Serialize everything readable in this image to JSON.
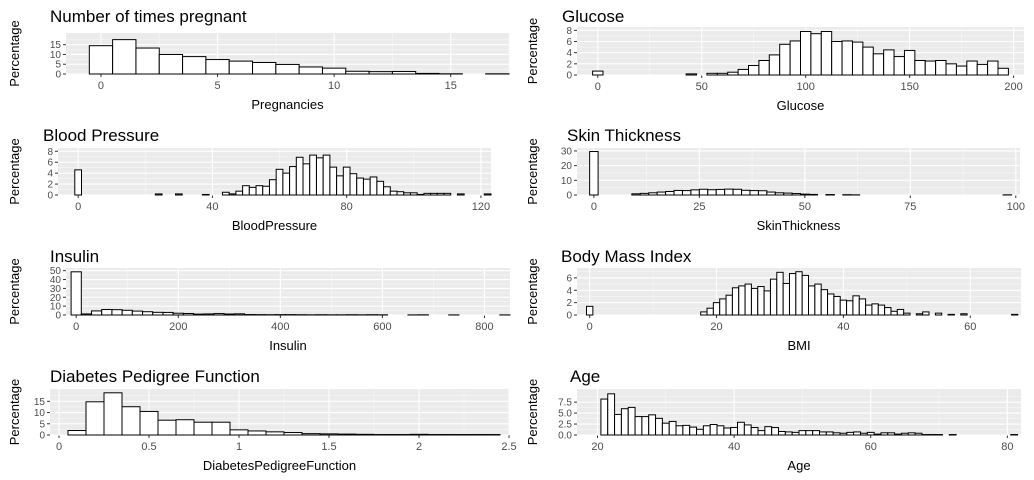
{
  "chart_data": [
    {
      "type": "bar",
      "title": "Number of times pregnant",
      "xlabel": "Pregnancies",
      "ylabel": "Percentage",
      "xlim": [
        -1.5,
        17.5
      ],
      "ylim": [
        0,
        21
      ],
      "xticks": [
        0,
        5,
        10,
        15
      ],
      "yticks": [
        0,
        5,
        10,
        15
      ],
      "bin_width": 1,
      "x": [
        0,
        1,
        2,
        3,
        4,
        5,
        6,
        7,
        8,
        9,
        10,
        11,
        12,
        13,
        14,
        15,
        17
      ],
      "values": [
        14.5,
        17.6,
        13.3,
        10.0,
        8.9,
        7.4,
        6.6,
        5.9,
        4.9,
        3.6,
        3.0,
        1.4,
        1.2,
        1.3,
        0.3,
        0.1,
        0.1
      ]
    },
    {
      "type": "bar",
      "title": "Glucose",
      "xlabel": "Glucose",
      "ylabel": "Percentage",
      "xlim": [
        -10,
        205
      ],
      "ylim": [
        0,
        8.6
      ],
      "xticks": [
        0,
        50,
        100,
        150,
        200
      ],
      "yticks": [
        0,
        2,
        4,
        6,
        8
      ],
      "bin_width": 5,
      "x": [
        0,
        45,
        55,
        60,
        65,
        70,
        75,
        80,
        85,
        90,
        95,
        100,
        105,
        110,
        115,
        120,
        125,
        130,
        135,
        140,
        145,
        150,
        155,
        160,
        165,
        170,
        175,
        180,
        185,
        190,
        195
      ],
      "values": [
        0.7,
        0.2,
        0.3,
        0.3,
        0.5,
        1.0,
        1.7,
        2.6,
        3.6,
        5.5,
        6.1,
        7.8,
        7.4,
        7.8,
        6.0,
        6.1,
        5.9,
        5.0,
        3.8,
        4.5,
        3.3,
        4.4,
        2.6,
        2.5,
        2.6,
        2.0,
        1.6,
        2.5,
        1.9,
        2.5,
        1.2
      ]
    },
    {
      "type": "bar",
      "title": "Blood Pressure",
      "xlabel": "BloodPressure",
      "ylabel": "Percentage",
      "xlim": [
        -6,
        123
      ],
      "ylim": [
        0,
        8.6
      ],
      "xticks": [
        0,
        40,
        80,
        120
      ],
      "yticks": [
        0,
        2,
        4,
        6,
        8
      ],
      "bin_width": 2,
      "x": [
        0,
        24,
        30,
        38,
        44,
        46,
        48,
        50,
        52,
        54,
        56,
        58,
        60,
        62,
        64,
        66,
        68,
        70,
        72,
        74,
        76,
        78,
        80,
        82,
        84,
        86,
        88,
        90,
        92,
        94,
        96,
        98,
        100,
        102,
        104,
        106,
        108,
        110,
        114,
        122
      ],
      "values": [
        4.6,
        0.2,
        0.2,
        0.1,
        0.5,
        0.2,
        0.7,
        1.7,
        1.4,
        1.7,
        1.6,
        2.8,
        4.7,
        4.0,
        5.2,
        6.9,
        5.7,
        7.3,
        6.8,
        7.3,
        5.1,
        3.5,
        5.1,
        3.9,
        3.1,
        2.9,
        3.3,
        2.5,
        1.5,
        0.7,
        0.6,
        0.4,
        0.4,
        0.1,
        0.3,
        0.3,
        0.3,
        0.3,
        0.2,
        0.2
      ]
    },
    {
      "type": "bar",
      "title": "Skin Thickness",
      "xlabel": "SkinThickness",
      "ylabel": "Percentage",
      "xlim": [
        -4,
        101
      ],
      "ylim": [
        0,
        32
      ],
      "xticks": [
        0,
        25,
        50,
        75,
        100
      ],
      "yticks": [
        0,
        10,
        20,
        30
      ],
      "bin_width": 2,
      "x": [
        0,
        10,
        12,
        14,
        16,
        18,
        20,
        22,
        24,
        26,
        28,
        30,
        32,
        34,
        36,
        38,
        40,
        42,
        44,
        46,
        48,
        50,
        52,
        56,
        60,
        62,
        98
      ],
      "values": [
        29.6,
        0.8,
        1.1,
        1.5,
        2.0,
        2.4,
        3.1,
        3.0,
        3.5,
        3.9,
        3.6,
        3.8,
        4.0,
        3.9,
        3.2,
        3.0,
        2.9,
        2.0,
        1.5,
        1.3,
        1.0,
        0.6,
        0.4,
        0.3,
        0.2,
        0.1,
        0.1
      ]
    },
    {
      "type": "bar",
      "title": "Insulin",
      "xlabel": "Insulin",
      "ylabel": "Percentage",
      "xlim": [
        -20,
        850
      ],
      "ylim": [
        0,
        53
      ],
      "xticks": [
        0,
        200,
        400,
        600,
        800
      ],
      "yticks": [
        0,
        10,
        20,
        30,
        40,
        50
      ],
      "bin_width": 20,
      "x": [
        0,
        20,
        40,
        60,
        80,
        100,
        120,
        140,
        160,
        180,
        200,
        220,
        240,
        260,
        280,
        300,
        320,
        340,
        360,
        380,
        400,
        420,
        440,
        460,
        480,
        500,
        520,
        540,
        560,
        580,
        600,
        660,
        680,
        740,
        840
      ],
      "values": [
        48.7,
        1.2,
        4.6,
        6.2,
        6.0,
        5.3,
        4.4,
        3.7,
        3.0,
        2.9,
        2.0,
        1.7,
        1.0,
        1.2,
        1.6,
        1.1,
        1.3,
        0.5,
        0.4,
        0.3,
        0.4,
        0.4,
        0.3,
        0.2,
        0.3,
        0.2,
        0.2,
        0.3,
        0.2,
        0.3,
        0.2,
        0.1,
        0.2,
        0.1,
        0.1
      ]
    },
    {
      "type": "bar",
      "title": "Body Mass Index",
      "xlabel": "BMI",
      "ylabel": "Percentage",
      "xlim": [
        -2,
        68
      ],
      "ylim": [
        0,
        7.6
      ],
      "xticks": [
        0,
        20,
        40,
        60
      ],
      "yticks": [
        0,
        2,
        4,
        6
      ],
      "bin_width": 1,
      "x": [
        0,
        18,
        19,
        20,
        21,
        22,
        23,
        24,
        25,
        26,
        27,
        28,
        29,
        30,
        31,
        32,
        33,
        34,
        35,
        36,
        37,
        38,
        39,
        40,
        41,
        42,
        43,
        44,
        45,
        46,
        47,
        48,
        49,
        50,
        52,
        53,
        55,
        57,
        59,
        67
      ],
      "values": [
        1.4,
        0.5,
        1.1,
        2.0,
        2.6,
        3.2,
        4.4,
        4.7,
        5.0,
        4.3,
        4.6,
        3.9,
        5.8,
        6.9,
        5.1,
        6.7,
        7.0,
        6.4,
        4.7,
        5.0,
        4.1,
        3.4,
        3.0,
        2.4,
        2.3,
        3.1,
        2.6,
        1.6,
        1.8,
        1.6,
        1.2,
        0.6,
        0.9,
        0.3,
        0.2,
        0.5,
        0.3,
        0.1,
        0.2,
        0.1
      ]
    },
    {
      "type": "bar",
      "title": "Diabetes Pedigree Function",
      "xlabel": "DiabetesPedigreeFunction",
      "ylabel": "Percentage",
      "xlim": [
        -0.05,
        2.5
      ],
      "ylim": [
        0,
        20.5
      ],
      "xticks": [
        0.0,
        0.5,
        1.0,
        1.5,
        2.0,
        2.5
      ],
      "yticks": [
        0,
        5,
        10,
        15
      ],
      "bin_width": 0.1,
      "x": [
        0.1,
        0.2,
        0.3,
        0.4,
        0.5,
        0.6,
        0.7,
        0.8,
        0.9,
        1.0,
        1.1,
        1.2,
        1.3,
        1.4,
        1.5,
        1.6,
        1.7,
        1.8,
        1.9,
        2.0,
        2.1,
        2.2,
        2.3,
        2.4
      ],
      "values": [
        2.0,
        14.8,
        18.8,
        12.6,
        10.5,
        6.6,
        6.8,
        5.7,
        5.7,
        2.3,
        1.8,
        1.4,
        1.1,
        0.6,
        0.5,
        0.4,
        0.3,
        0.2,
        0.2,
        0.3,
        0.2,
        0.2,
        0.2,
        0.2
      ]
    },
    {
      "type": "bar",
      "title": "Age",
      "xlabel": "Age",
      "ylabel": "Percentage",
      "xlim": [
        17,
        82
      ],
      "ylim": [
        0,
        10.5
      ],
      "xticks": [
        20,
        40,
        60,
        80
      ],
      "yticks": [
        0.0,
        2.5,
        5.0,
        7.5
      ],
      "ytick_labels": [
        "0.0",
        "2.5",
        "5.0",
        "7.5"
      ],
      "bin_width": 1,
      "x": [
        21,
        22,
        23,
        24,
        25,
        26,
        27,
        28,
        29,
        30,
        31,
        32,
        33,
        34,
        35,
        36,
        37,
        38,
        39,
        40,
        41,
        42,
        43,
        44,
        45,
        46,
        47,
        48,
        49,
        50,
        51,
        52,
        53,
        54,
        55,
        56,
        57,
        58,
        59,
        60,
        61,
        62,
        63,
        64,
        65,
        66,
        67,
        68,
        69,
        70,
        72,
        81
      ],
      "values": [
        8.2,
        9.4,
        4.7,
        6.0,
        6.3,
        4.2,
        4.2,
        4.6,
        3.8,
        2.7,
        3.1,
        2.1,
        2.2,
        1.8,
        1.3,
        2.1,
        2.4,
        2.1,
        1.6,
        1.7,
        2.9,
        2.3,
        1.7,
        1.0,
        1.9,
        1.7,
        0.8,
        0.7,
        0.6,
        1.0,
        1.0,
        1.0,
        0.7,
        0.7,
        0.5,
        0.4,
        0.6,
        0.7,
        0.4,
        0.6,
        0.2,
        0.5,
        0.5,
        0.2,
        0.4,
        0.5,
        0.4,
        0.1,
        0.1,
        0.1,
        0.1,
        0.1
      ]
    }
  ]
}
